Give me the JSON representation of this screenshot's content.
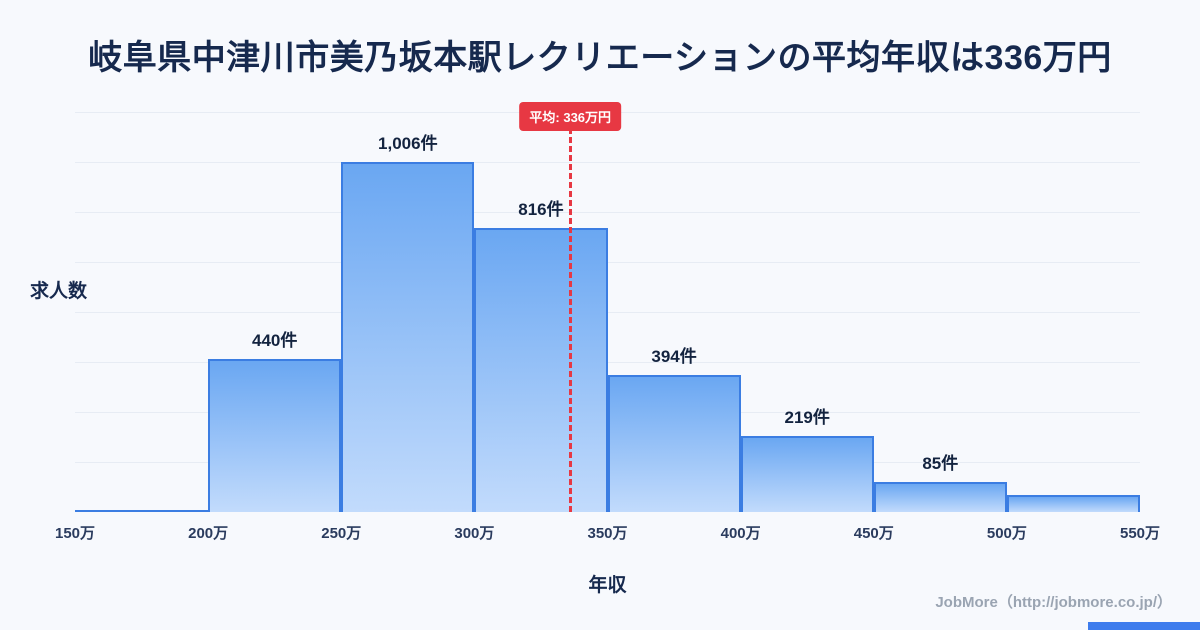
{
  "page": {
    "title": "岐阜県中津川市美乃坂本駅レクリエーションの平均年収は336万円",
    "footer": "JobMore（http://jobmore.co.jp/）"
  },
  "chart_data": {
    "type": "bar",
    "title": "岐阜県中津川市美乃坂本駅レクリエーションの平均年収は336万円",
    "xlabel": "年収",
    "ylabel": "求人数",
    "x_ticks": [
      "150万",
      "200万",
      "250万",
      "300万",
      "350万",
      "400万",
      "450万",
      "500万",
      "550万"
    ],
    "x_range": [
      150,
      550
    ],
    "ylim": [
      0,
      1150
    ],
    "grid": "horizontal",
    "legend_position": "none",
    "bars": [
      {
        "range": "150万-200万",
        "value": 5,
        "label": ""
      },
      {
        "range": "200万-250万",
        "value": 440,
        "label": "440件"
      },
      {
        "range": "250万-300万",
        "value": 1006,
        "label": "1,006件"
      },
      {
        "range": "300万-350万",
        "value": 816,
        "label": "816件"
      },
      {
        "range": "350万-400万",
        "value": 394,
        "label": "394件"
      },
      {
        "range": "400万-450万",
        "value": 219,
        "label": "219件"
      },
      {
        "range": "450万-500万",
        "value": 85,
        "label": "85件"
      },
      {
        "range": "500万-550万",
        "value": 50,
        "label": ""
      }
    ],
    "average": {
      "value": 336,
      "label": "平均: 336万円"
    },
    "colors": {
      "bar_fill_top": "#6aa7f2",
      "bar_fill_bottom": "#c2dbfc",
      "bar_border": "#3b7de2",
      "average_accent": "#e73843",
      "title_text": "#16294e",
      "footer_accent": "#3e7ced"
    }
  }
}
